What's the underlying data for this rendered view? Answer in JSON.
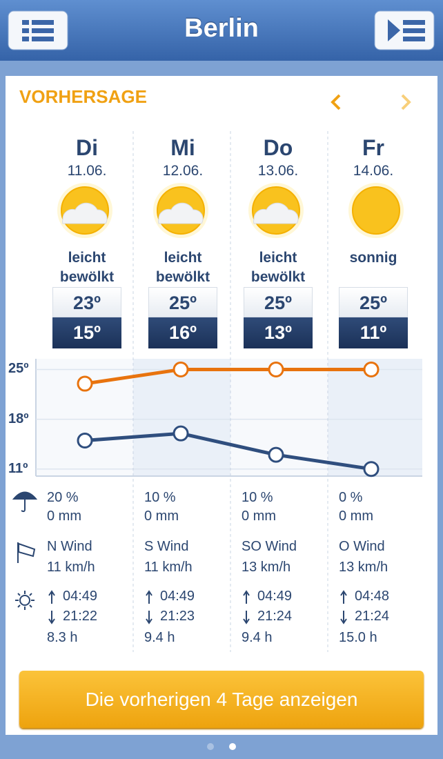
{
  "header": {
    "title": "Berlin"
  },
  "forecast": {
    "label": "VORHERSAGE",
    "days": [
      {
        "date": "11.06.",
        "condition": "leicht bewölkt",
        "precip_chance": "20 %",
        "precip_amount": "0 mm",
        "wind": "N Wind",
        "wind_speed": "11 km/h",
        "sunrise": "04:49",
        "sunset": "21:22",
        "sun_hours": "8.3 h"
      },
      {
        "date": "12.06.",
        "condition": "leicht bewölkt",
        "precip_chance": "10 %",
        "precip_amount": "0 mm",
        "wind": "S Wind",
        "wind_speed": "11 km/h",
        "sunrise": "04:49",
        "sunset": "21:23",
        "sun_hours": "9.4 h"
      },
      {
        "date": "13.06.",
        "condition": "leicht bewölkt",
        "precip_chance": "10 %",
        "precip_amount": "0 mm",
        "wind": "SO Wind",
        "wind_speed": "13 km/h",
        "sunrise": "04:49",
        "sunset": "21:24",
        "sun_hours": "9.4 h"
      },
      {
        "date": "14.06.",
        "condition": "sonnig",
        "precip_chance": "0 %",
        "precip_amount": "0 mm",
        "wind": "O Wind",
        "wind_speed": "13 km/h",
        "sunrise": "04:48",
        "sunset": "21:24",
        "sun_hours": "15.0 h"
      }
    ]
  },
  "chart_data": {
    "type": "line",
    "categories": [
      "Di",
      "Mi",
      "Do",
      "Fr"
    ],
    "ylim": [
      10,
      26.5
    ],
    "yticks": [
      {
        "value": 25,
        "label": "25º"
      },
      {
        "value": 18,
        "label": "18º"
      },
      {
        "value": 11,
        "label": "11º"
      }
    ],
    "grid": true,
    "series": [
      {
        "color": "#e8730e",
        "values": [
          23,
          25,
          25,
          25
        ],
        "value_labels": [
          "23º",
          "25º",
          "25º",
          "25º"
        ]
      },
      {
        "color": "#2f4e7e",
        "values": [
          15,
          16,
          13,
          11
        ],
        "value_labels": [
          "15º",
          "16º",
          "13º",
          "11º"
        ]
      }
    ]
  },
  "button": {
    "label": "Die vorherigen 4 Tage anzeigen"
  }
}
